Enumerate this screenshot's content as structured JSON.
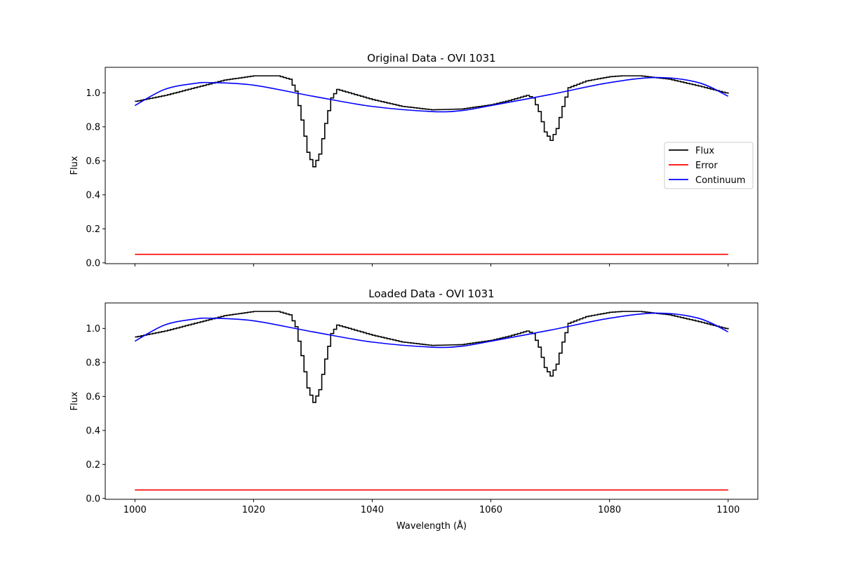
{
  "chart_data": [
    {
      "type": "line",
      "title": "Original Data - OVI 1031",
      "xlabel": "",
      "ylabel": "Flux",
      "xlim": [
        995,
        1105
      ],
      "ylim": [
        -0.005,
        1.15
      ],
      "xticks": [
        1000,
        1020,
        1040,
        1060,
        1080,
        1100
      ],
      "xtick_labels_visible": false,
      "yticks": [
        0.0,
        0.2,
        0.4,
        0.6,
        0.8,
        1.0
      ],
      "grid": false,
      "legend": {
        "placement": "center-right",
        "entries": [
          "Flux",
          "Error",
          "Continuum"
        ]
      },
      "series": [
        {
          "name": "Flux",
          "style": "step",
          "color": "#000000",
          "x": [
            1000,
            1005,
            1010,
            1015,
            1020,
            1024,
            1026,
            1027,
            1028,
            1029,
            1030,
            1031,
            1032,
            1033,
            1034,
            1036,
            1040,
            1045,
            1050,
            1055,
            1060,
            1063,
            1066,
            1067,
            1068,
            1069,
            1070,
            1071,
            1072,
            1073,
            1076,
            1080,
            1082,
            1085,
            1090,
            1095,
            1100
          ],
          "y": [
            0.95,
            0.985,
            1.03,
            1.075,
            1.1,
            1.1,
            1.08,
            1.01,
            0.84,
            0.65,
            0.565,
            0.64,
            0.82,
            0.97,
            1.02,
            1.0,
            0.96,
            0.92,
            0.9,
            0.905,
            0.93,
            0.955,
            0.985,
            0.97,
            0.89,
            0.77,
            0.72,
            0.79,
            0.92,
            1.03,
            1.07,
            1.095,
            1.1,
            1.1,
            1.08,
            1.04,
            0.995
          ]
        },
        {
          "name": "Error",
          "style": "line",
          "color": "#ff0000",
          "x": [
            1000,
            1100
          ],
          "y": [
            0.05,
            0.05
          ]
        },
        {
          "name": "Continuum",
          "style": "line",
          "color": "#0000ff",
          "x": [
            1000,
            1005,
            1010,
            1013,
            1020,
            1030,
            1040,
            1050,
            1055,
            1060,
            1070,
            1080,
            1088,
            1095,
            1100
          ],
          "y": [
            0.925,
            1.02,
            1.055,
            1.06,
            1.045,
            0.98,
            0.92,
            0.89,
            0.895,
            0.925,
            0.99,
            1.06,
            1.09,
            1.06,
            0.98
          ]
        }
      ]
    },
    {
      "type": "line",
      "title": "Loaded Data - OVI 1031",
      "xlabel": "Wavelength (Å)",
      "ylabel": "Flux",
      "xlim": [
        995,
        1105
      ],
      "ylim": [
        -0.005,
        1.15
      ],
      "xticks": [
        1000,
        1020,
        1040,
        1060,
        1080,
        1100
      ],
      "xtick_labels_visible": true,
      "yticks": [
        0.0,
        0.2,
        0.4,
        0.6,
        0.8,
        1.0
      ],
      "grid": false,
      "legend": null,
      "series": [
        {
          "name": "Flux",
          "style": "step",
          "color": "#000000",
          "x": [
            1000,
            1005,
            1010,
            1015,
            1020,
            1024,
            1026,
            1027,
            1028,
            1029,
            1030,
            1031,
            1032,
            1033,
            1034,
            1036,
            1040,
            1045,
            1050,
            1055,
            1060,
            1063,
            1066,
            1067,
            1068,
            1069,
            1070,
            1071,
            1072,
            1073,
            1076,
            1080,
            1082,
            1085,
            1090,
            1095,
            1100
          ],
          "y": [
            0.95,
            0.985,
            1.03,
            1.075,
            1.1,
            1.1,
            1.08,
            1.01,
            0.84,
            0.65,
            0.565,
            0.64,
            0.82,
            0.97,
            1.02,
            1.0,
            0.96,
            0.92,
            0.9,
            0.905,
            0.93,
            0.955,
            0.985,
            0.97,
            0.89,
            0.77,
            0.72,
            0.79,
            0.92,
            1.03,
            1.07,
            1.095,
            1.1,
            1.1,
            1.08,
            1.04,
            0.995
          ]
        },
        {
          "name": "Error",
          "style": "line",
          "color": "#ff0000",
          "x": [
            1000,
            1100
          ],
          "y": [
            0.05,
            0.05
          ]
        },
        {
          "name": "Continuum",
          "style": "line",
          "color": "#0000ff",
          "x": [
            1000,
            1005,
            1010,
            1013,
            1020,
            1030,
            1040,
            1050,
            1055,
            1060,
            1070,
            1080,
            1088,
            1095,
            1100
          ],
          "y": [
            0.925,
            1.02,
            1.055,
            1.06,
            1.045,
            0.98,
            0.92,
            0.89,
            0.895,
            0.925,
            0.99,
            1.06,
            1.09,
            1.06,
            0.98
          ]
        }
      ]
    }
  ]
}
